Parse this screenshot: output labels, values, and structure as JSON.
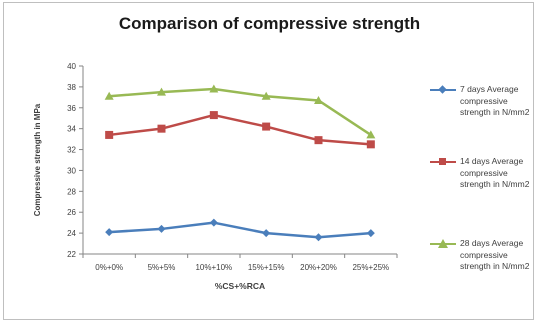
{
  "chart_data": {
    "type": "line",
    "title": "Comparison of compressive strength",
    "xlabel": "%CS+%RCA",
    "ylabel": "Compressive strength in MPa",
    "categories": [
      "0%+0%",
      "5%+5%",
      "10%+10%",
      "15%+15%",
      "20%+20%",
      "25%+25%"
    ],
    "ylim": [
      22,
      40
    ],
    "yticks": [
      22,
      24,
      26,
      28,
      30,
      32,
      34,
      36,
      38,
      40
    ],
    "grid": false,
    "legend_position": "right",
    "series": [
      {
        "name": "7 days Average compressive strength in N/mm2",
        "color": "#4a7ebb",
        "marker": "diamond",
        "values": [
          24.1,
          24.4,
          25.0,
          24.0,
          23.6,
          24.0
        ]
      },
      {
        "name": "14 days Average compressive strength in N/mm2",
        "color": "#be4b48",
        "marker": "square",
        "values": [
          33.4,
          34.0,
          35.3,
          34.2,
          32.9,
          32.5
        ]
      },
      {
        "name": "28 days Average compressive strength in N/mm2",
        "color": "#98b954",
        "marker": "triangle",
        "values": [
          37.1,
          37.5,
          37.8,
          37.1,
          36.7,
          33.4
        ]
      }
    ]
  }
}
